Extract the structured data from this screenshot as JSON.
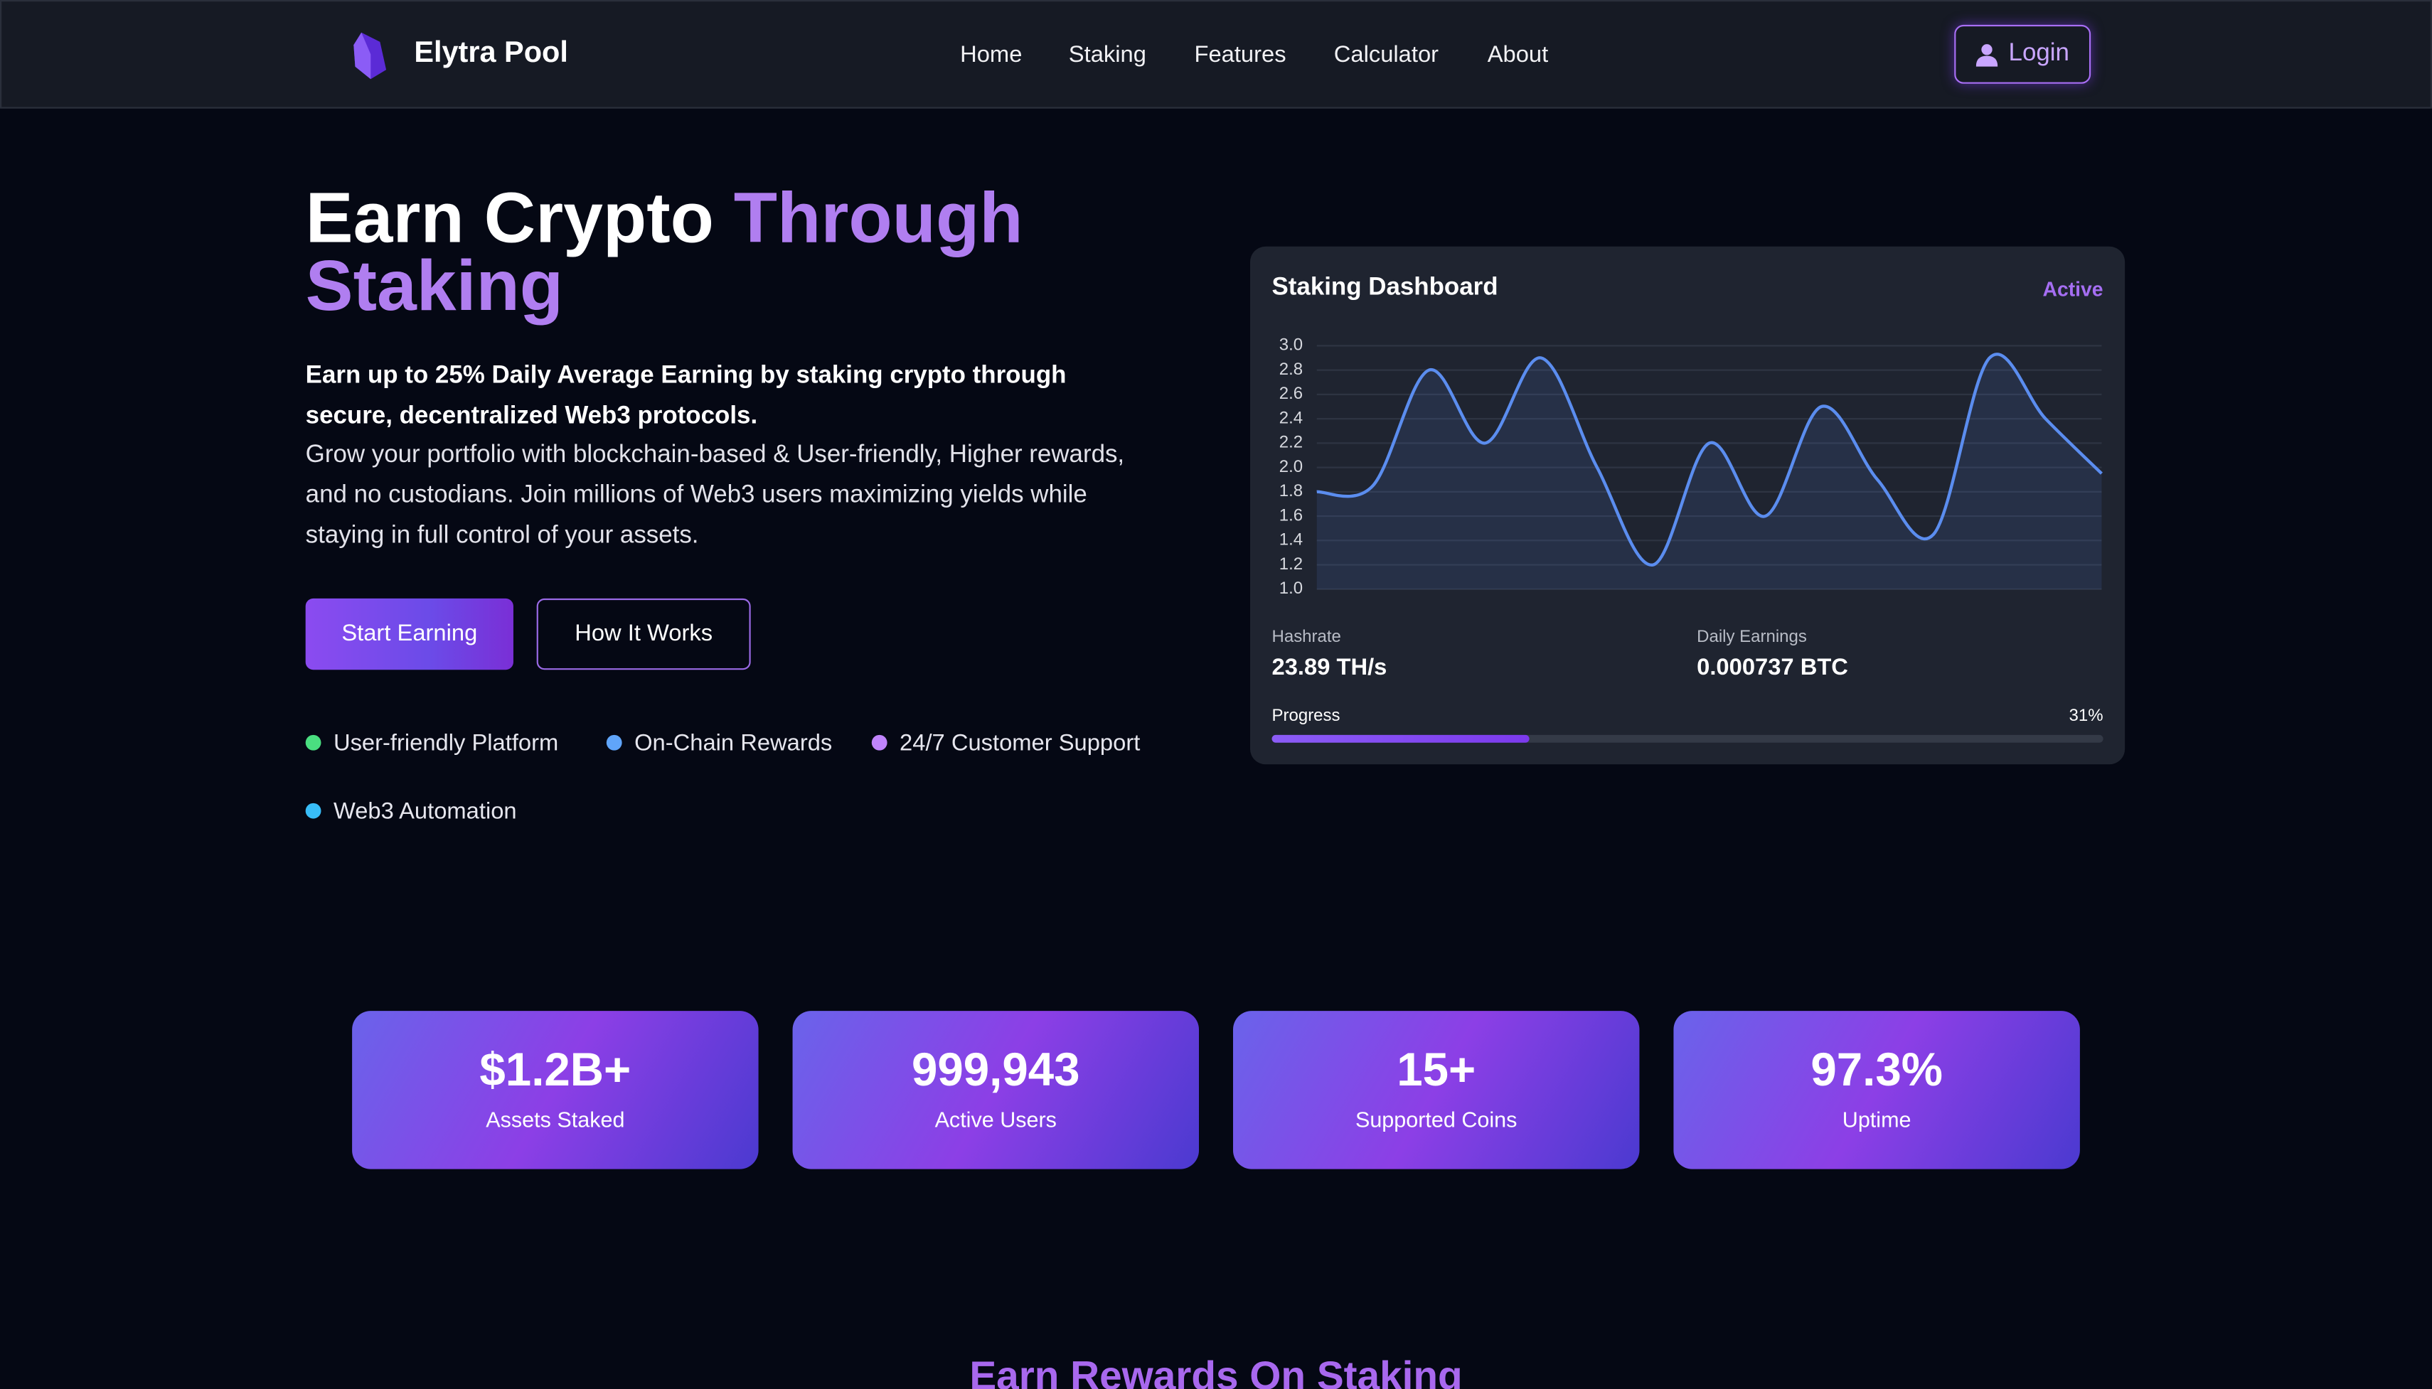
{
  "nav": {
    "brand": "Elytra Pool",
    "links": [
      "Home",
      "Staking",
      "Features",
      "Calculator",
      "About"
    ],
    "login": "Login"
  },
  "hero": {
    "title_part1": "Earn Crypto",
    "title_highlight": "Through Staking",
    "lead": "Earn up to 25% Daily Average Earning by staking crypto through secure, decentralized Web3 protocols.",
    "body": "Grow your portfolio with blockchain-based & User-friendly, Higher rewards, and no custodians. Join millions of Web3 users maximizing yields while staying in full control of your assets.",
    "primary_button": "Start Earning",
    "secondary_button": "How It Works",
    "features": [
      {
        "label": "User-friendly Platform",
        "color": "#4ade80"
      },
      {
        "label": "On-Chain Rewards",
        "color": "#60a5fa"
      },
      {
        "label": "24/7 Customer Support",
        "color": "#c084fc"
      },
      {
        "label": "Web3 Automation",
        "color": "#38bdf8"
      }
    ]
  },
  "dashboard": {
    "title": "Staking Dashboard",
    "status": "Active",
    "chart": {
      "type": "line",
      "values": [
        1.8,
        1.85,
        2.8,
        2.2,
        2.9,
        2.0,
        1.2,
        2.2,
        1.6,
        2.5,
        1.9,
        1.45,
        2.9,
        2.4,
        1.95
      ],
      "color": "#5b8def",
      "ylim": [
        1,
        3
      ],
      "yticks": [
        {
          "value": 1,
          "label": "1.0"
        },
        1.2,
        1.4,
        1.6,
        1.8,
        {
          "value": 2,
          "label": "2.0"
        },
        2.2,
        2.4,
        2.6,
        2.8,
        {
          "value": 3,
          "label": "3.0"
        }
      ],
      "grid": true
    },
    "hashrate": {
      "label": "Hashrate",
      "value": "23.89 TH/s"
    },
    "earnings": {
      "label": "Daily Earnings",
      "value": "0.000737 BTC"
    },
    "progress": {
      "label": "Progress",
      "value": 31,
      "value_label": "31%"
    }
  },
  "stats": [
    {
      "value": "$1.2B+",
      "label": "Assets Staked"
    },
    {
      "value": "999,943",
      "label": "Active Users"
    },
    {
      "value": "15+",
      "label": "Supported Coins"
    },
    {
      "value": "97.3%",
      "label": "Uptime"
    }
  ],
  "section": {
    "title": "Earn Rewards On Staking"
  }
}
